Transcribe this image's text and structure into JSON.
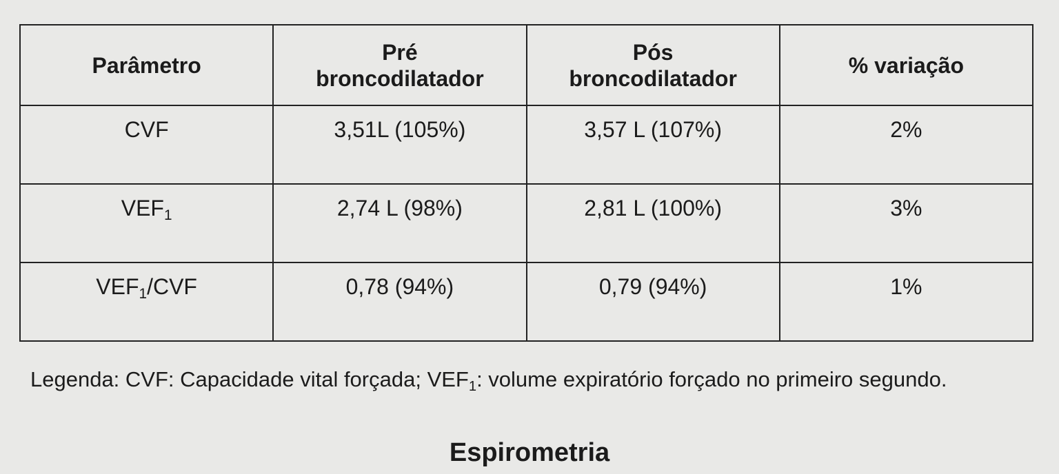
{
  "table": {
    "header": [
      "Parâmetro",
      "Pré broncodilatador",
      "Pós broncodilatador",
      "% variação"
    ],
    "rows": [
      [
        "CVF",
        "3,51L (105%)",
        "3,57 L (107%)",
        "2%"
      ],
      [
        {
          "text": "VEF",
          "sub": "1"
        },
        "2,74 L (98%)",
        "2,81 L (100%)",
        "3%"
      ],
      [
        {
          "text": "VEF",
          "sub": "1",
          "after": "/CVF"
        },
        "0,78 (94%)",
        "0,79 (94%)",
        "1%"
      ]
    ]
  },
  "legend": {
    "text": "Legenda: CVF: Capacidade vital forçada; VEF",
    "sub": "1",
    "after": ": volume expiratório forçado no primeiro segundo."
  },
  "caption": "Espirometria"
}
